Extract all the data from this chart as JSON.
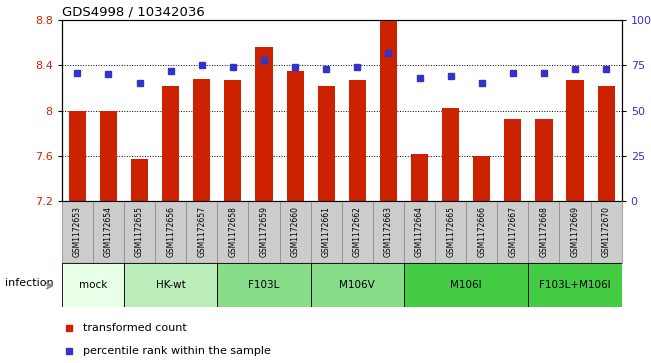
{
  "title": "GDS4998 / 10342036",
  "samples": [
    "GSM1172653",
    "GSM1172654",
    "GSM1172655",
    "GSM1172656",
    "GSM1172657",
    "GSM1172658",
    "GSM1172659",
    "GSM1172660",
    "GSM1172661",
    "GSM1172662",
    "GSM1172663",
    "GSM1172664",
    "GSM1172665",
    "GSM1172666",
    "GSM1172667",
    "GSM1172668",
    "GSM1172669",
    "GSM1172670"
  ],
  "bar_values": [
    8.0,
    8.0,
    7.57,
    8.22,
    8.28,
    8.27,
    8.56,
    8.35,
    8.22,
    8.27,
    8.8,
    7.62,
    8.02,
    7.6,
    7.93,
    7.93,
    8.27,
    8.22
  ],
  "dot_values": [
    71,
    70,
    65,
    72,
    75,
    74,
    78,
    74,
    73,
    74,
    82,
    68,
    69,
    65,
    71,
    71,
    73,
    73
  ],
  "bar_color": "#cc2200",
  "dot_color": "#3333cc",
  "ylim_left": [
    7.2,
    8.8
  ],
  "ylim_right": [
    0,
    100
  ],
  "yticks_left": [
    7.2,
    7.6,
    8.0,
    8.4,
    8.8
  ],
  "yticks_right": [
    0,
    25,
    50,
    75,
    100
  ],
  "ytick_labels_left": [
    "7.2",
    "7.6",
    "8",
    "8.4",
    "8.8"
  ],
  "ytick_labels_right": [
    "0",
    "25",
    "50",
    "75",
    "100%"
  ],
  "hlines": [
    7.6,
    8.0,
    8.4
  ],
  "groups": [
    {
      "label": "mock",
      "start": 0,
      "end": 2,
      "color": "#e8ffe8"
    },
    {
      "label": "HK-wt",
      "start": 2,
      "end": 5,
      "color": "#bbeebb"
    },
    {
      "label": "F103L",
      "start": 5,
      "end": 8,
      "color": "#88dd88"
    },
    {
      "label": "M106V",
      "start": 8,
      "end": 11,
      "color": "#88dd88"
    },
    {
      "label": "M106I",
      "start": 11,
      "end": 15,
      "color": "#44cc44"
    },
    {
      "label": "F103L+M106I",
      "start": 15,
      "end": 18,
      "color": "#44cc44"
    }
  ],
  "infection_label": "infection",
  "legend_items": [
    {
      "label": "transformed count",
      "color": "#cc2200"
    },
    {
      "label": "percentile rank within the sample",
      "color": "#3333cc"
    }
  ],
  "ylabel_left_color": "#cc2200",
  "ylabel_right_color": "#3333cc",
  "bar_width": 0.55,
  "sample_box_color": "#cccccc",
  "sample_box_edge": "#888888"
}
